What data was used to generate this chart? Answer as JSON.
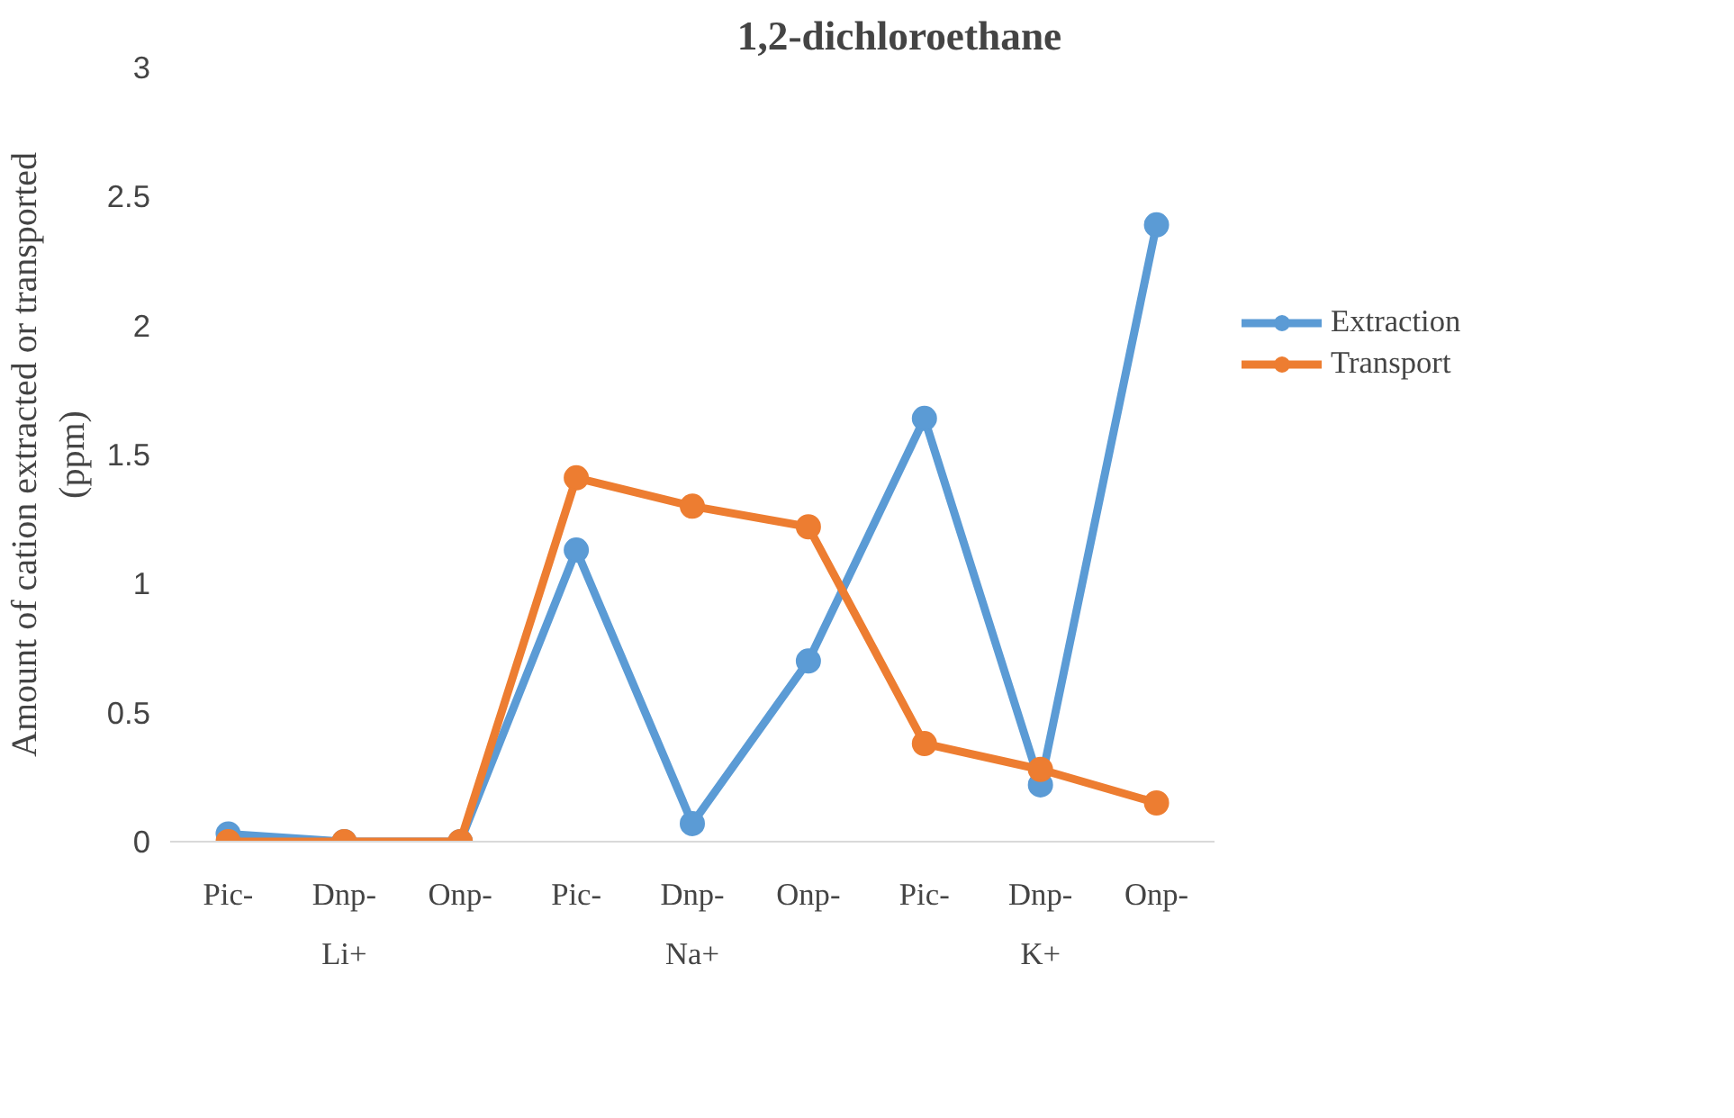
{
  "chart_data": {
    "type": "line",
    "title": "1,2-dichloroethane",
    "ylabel": "Amount of cation extracted or transported\n(ppm)",
    "categories": [
      "Pic-",
      "Dnp-",
      "Onp-",
      "Pic-",
      "Dnp-",
      "Onp-",
      "Pic-",
      "Dnp-",
      "Onp-"
    ],
    "annotations": [
      "Li+",
      "Na+",
      "K+"
    ],
    "series": [
      {
        "name": "Extraction",
        "color": "#5b9bd5",
        "values": [
          0.03,
          0,
          0,
          1.13,
          0.07,
          0.7,
          1.64,
          0.22,
          2.39
        ]
      },
      {
        "name": "Transport",
        "color": "#ed7d31",
        "values": [
          0,
          0,
          0,
          1.41,
          1.3,
          1.22,
          0.38,
          0.28,
          0.15
        ]
      }
    ],
    "ylim": [
      0,
      3
    ],
    "yticks": [
      0,
      0.5,
      1,
      1.5,
      2,
      2.5,
      3
    ],
    "grid": false,
    "legend": "right",
    "marker": "circle",
    "line_style": "solid"
  }
}
